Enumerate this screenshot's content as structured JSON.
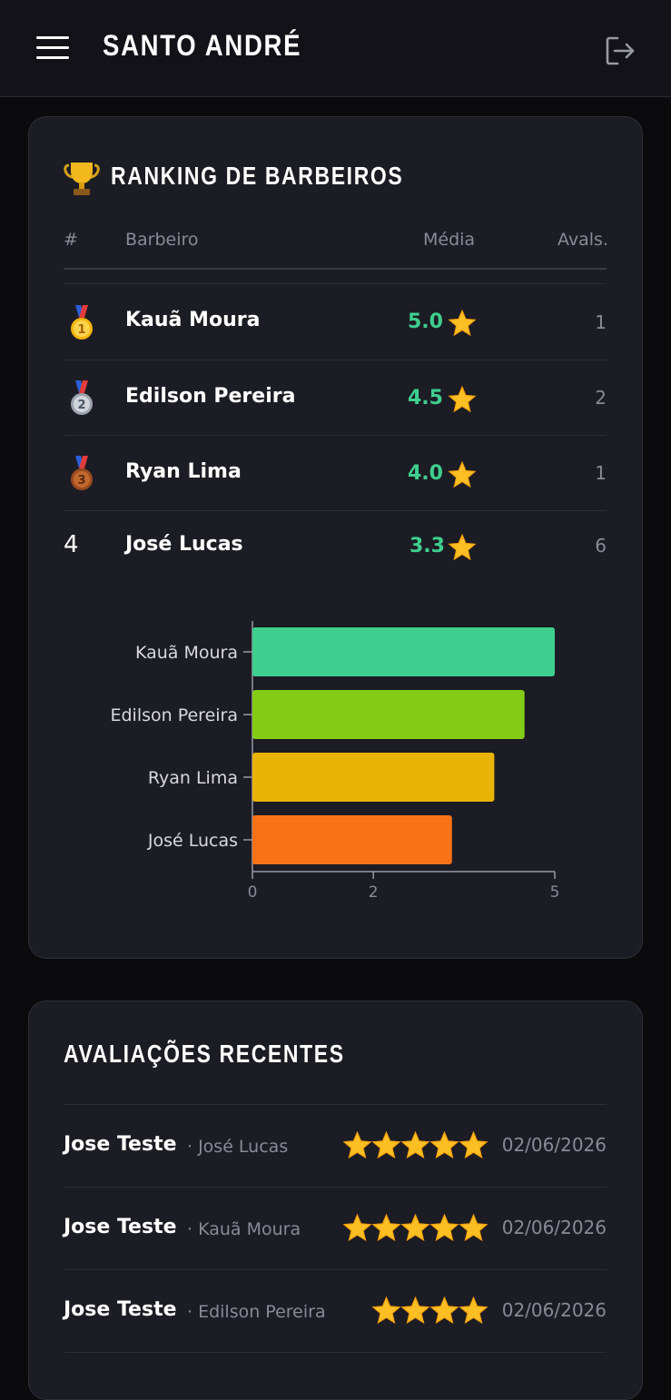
{
  "header": {
    "title": "SANTO ANDRÉ",
    "menu_icon": "hamburger-icon",
    "logout_icon": "logout-icon"
  },
  "ranking": {
    "title": "RANKING DE BARBEIROS",
    "icon": "trophy-icon",
    "columns": {
      "rank": "#",
      "barber": "Barbeiro",
      "avg": "Média",
      "count": "Avals."
    },
    "rows": [
      {
        "rank": "1",
        "medal": "gold-medal-icon",
        "name": "Kauã Moura",
        "avg": "5.0",
        "count": "1"
      },
      {
        "rank": "2",
        "medal": "silver-medal-icon",
        "name": "Edilson Pereira",
        "avg": "4.5",
        "count": "2"
      },
      {
        "rank": "3",
        "medal": "bronze-medal-icon",
        "name": "Ryan Lima",
        "avg": "4.0",
        "count": "1"
      },
      {
        "rank": "4",
        "medal": "",
        "name": "José Lucas",
        "avg": "3.3",
        "count": "6"
      }
    ]
  },
  "chart_data": {
    "type": "bar",
    "orientation": "horizontal",
    "categories": [
      "Kauã Moura",
      "Edilson Pereira",
      "Ryan Lima",
      "José Lucas"
    ],
    "values": [
      5.0,
      4.5,
      4.0,
      3.3
    ],
    "colors": [
      "#3ecf8e",
      "#84cc16",
      "#eab308",
      "#f97316"
    ],
    "xlim": [
      0,
      5
    ],
    "x_ticks": [
      "0",
      "2",
      "5"
    ],
    "title": "",
    "xlabel": "",
    "ylabel": "",
    "grid": false,
    "legend": "none"
  },
  "recent": {
    "title": "AVALIAÇÕES RECENTES",
    "items": [
      {
        "client": "Jose Teste",
        "barber": "· José Lucas",
        "stars": 5,
        "date": "02/06/2026"
      },
      {
        "client": "Jose Teste",
        "barber": "· Kauã Moura",
        "stars": 5,
        "date": "02/06/2026"
      },
      {
        "client": "Jose Teste",
        "barber": "· Edilson Pereira",
        "stars": 4,
        "date": "02/06/2026"
      }
    ]
  },
  "colors": {
    "background": "#0b0b0e",
    "card": "#1c1c24",
    "accent_green": "#3ecf8e",
    "muted": "#8a8a95",
    "star": "#fbbf24"
  }
}
